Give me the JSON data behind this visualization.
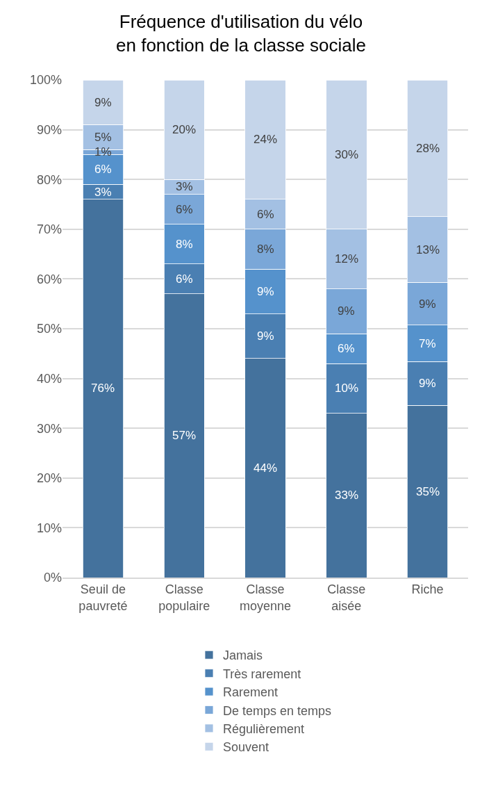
{
  "chart_data": {
    "type": "bar",
    "stacked": true,
    "title": "Fréquence d'utilisation du vélo en fonction de la classe sociale",
    "categories": [
      "Seuil de pauvreté",
      "Classe populaire",
      "Classe moyenne",
      "Classe aisée",
      "Riche"
    ],
    "series": [
      {
        "name": "Jamais",
        "color": "#44729d",
        "values": [
          76,
          57,
          44,
          33,
          34.6
        ],
        "value_labels": [
          "76%",
          "57%",
          "44%",
          "33%",
          "35%"
        ]
      },
      {
        "name": "Très rarement",
        "color": "#4a7fb2",
        "values": [
          3,
          6,
          9,
          10,
          8.8
        ],
        "value_labels": [
          "3%",
          "6%",
          "9%",
          "10%",
          "9%"
        ]
      },
      {
        "name": "Rarement",
        "color": "#5592cc",
        "values": [
          6,
          8,
          9,
          6,
          7.3
        ],
        "value_labels": [
          "6%",
          "8%",
          "9%",
          "6%",
          "7%"
        ]
      },
      {
        "name": "De temps en temps",
        "color": "#7aa7d8",
        "values": [
          1,
          6,
          8,
          9,
          8.6
        ],
        "value_labels": [
          "1%",
          "6%",
          "8%",
          "9%",
          "9%"
        ]
      },
      {
        "name": "Régulièrement",
        "color": "#a3c0e3",
        "values": [
          5,
          3,
          6,
          12,
          13.2
        ],
        "value_labels": [
          "5%",
          "3%",
          "6%",
          "12%",
          "13%"
        ]
      },
      {
        "name": "Souvent",
        "color": "#c5d5ea",
        "values": [
          9,
          20,
          24,
          30,
          27.5
        ],
        "value_labels": [
          "9%",
          "20%",
          "24%",
          "30%",
          "28%"
        ]
      }
    ],
    "ylim": [
      0,
      100
    ],
    "yticks": [
      {
        "value": 0,
        "label": "0%"
      },
      {
        "value": 10,
        "label": "10%"
      },
      {
        "value": 20,
        "label": "20%"
      },
      {
        "value": 30,
        "label": "30%"
      },
      {
        "value": 40,
        "label": "40%"
      },
      {
        "value": 50,
        "label": "50%"
      },
      {
        "value": 60,
        "label": "60%"
      },
      {
        "value": 70,
        "label": "70%"
      },
      {
        "value": 80,
        "label": "80%"
      },
      {
        "value": 90,
        "label": "90%"
      },
      {
        "value": 100,
        "label": "100%"
      }
    ],
    "grid": "y",
    "legend": "bottom"
  }
}
